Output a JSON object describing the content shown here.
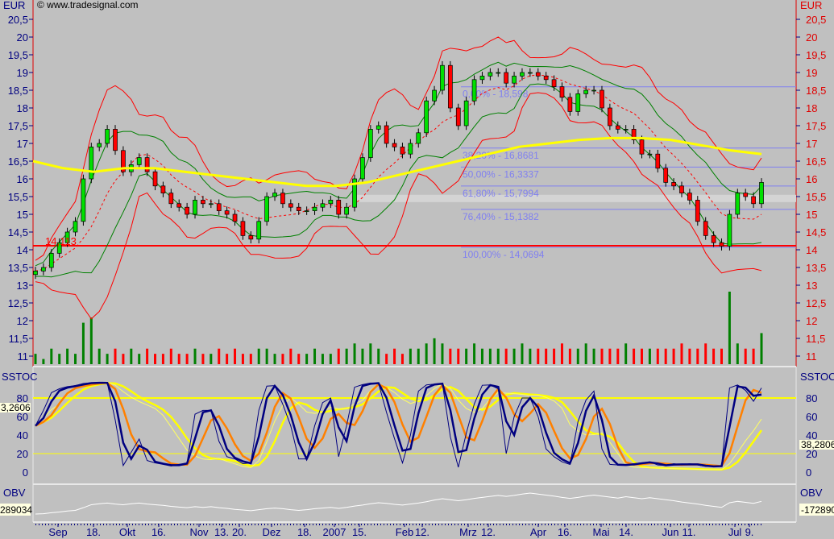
{
  "header": {
    "copyright": "© www.tradesignal.com",
    "currency": "EUR"
  },
  "panels": {
    "stoch": "SSTOC",
    "obv": "OBV"
  },
  "readouts": {
    "stoch_left": "3,2606",
    "stoch_right": "38,2806",
    "obv_left": "289034",
    "obv_right": "-172890"
  },
  "support_label": "14,113",
  "colors": {
    "up": "#00a000",
    "down": "#ff0000",
    "ma": "#ffff00",
    "fib": "#8080f0",
    "axis": "#000080",
    "stoch_fast": "#000080",
    "stoch_slow": "#ff8000"
  },
  "chart_data": [
    {
      "type": "candlestick",
      "ylim": [
        10.8,
        20.9
      ],
      "y_ticks": [
        "11",
        "11,5",
        "12",
        "12,5",
        "13",
        "13,5",
        "14",
        "14,5",
        "15",
        "15,5",
        "16",
        "16,5",
        "17",
        "17,5",
        "18",
        "18,5",
        "19",
        "19,5",
        "20",
        "20,5"
      ],
      "x_ticks": [
        "Sep",
        "18.",
        "Okt",
        "16.",
        "Nov",
        "13.",
        "20.",
        "Dez",
        "18.",
        "2007",
        "15.",
        "Feb",
        "12.",
        "Mrz",
        "12.",
        "Apr",
        "16.",
        "Mai",
        "14.",
        "Jun",
        "11.",
        "Jul",
        "9."
      ],
      "close": [
        13.4,
        13.5,
        13.9,
        14.2,
        14.5,
        14.8,
        16.0,
        16.9,
        17.0,
        17.4,
        16.8,
        16.2,
        16.4,
        16.6,
        16.2,
        15.8,
        15.6,
        15.3,
        15.2,
        15.0,
        15.4,
        15.3,
        15.3,
        15.1,
        15.0,
        14.8,
        14.4,
        14.3,
        14.8,
        15.5,
        15.6,
        15.3,
        15.2,
        15.1,
        15.1,
        15.2,
        15.3,
        15.4,
        15.0,
        15.2,
        16.0,
        16.6,
        17.4,
        17.5,
        17.0,
        16.9,
        16.7,
        17.0,
        17.3,
        18.2,
        18.5,
        19.2,
        18.0,
        17.5,
        18.2,
        18.8,
        18.9,
        19.0,
        19.0,
        18.7,
        18.9,
        19.0,
        19.0,
        18.9,
        18.8,
        18.6,
        18.3,
        17.9,
        18.4,
        18.5,
        18.5,
        18.0,
        17.5,
        17.4,
        17.4,
        17.1,
        16.7,
        16.7,
        16.3,
        15.9,
        15.8,
        15.6,
        15.4,
        14.8,
        14.4,
        14.2,
        14.1,
        15.0,
        15.6,
        15.5,
        15.3,
        15.9
      ],
      "volume": [
        2,
        1,
        3,
        2,
        3,
        2,
        8,
        9,
        3,
        2,
        3,
        2,
        3,
        2,
        3,
        2,
        2,
        3,
        2,
        2,
        3,
        2,
        2,
        3,
        2,
        3,
        2,
        2,
        3,
        3,
        2,
        2,
        3,
        2,
        2,
        3,
        2,
        2,
        3,
        3,
        4,
        3,
        4,
        3,
        2,
        3,
        2,
        3,
        3,
        4,
        5,
        4,
        3,
        3,
        3,
        4,
        3,
        3,
        3,
        3,
        3,
        4,
        3,
        3,
        3,
        3,
        4,
        3,
        3,
        4,
        3,
        3,
        3,
        3,
        4,
        3,
        3,
        3,
        3,
        3,
        3,
        4,
        3,
        3,
        4,
        3,
        3,
        14,
        4,
        3,
        3,
        6
      ],
      "moving_average": [
        16.5,
        16.3,
        16.2,
        16.3,
        16.3,
        16.2,
        16.1,
        16.0,
        15.9,
        15.8,
        15.8,
        15.9,
        16.1,
        16.3,
        16.5,
        16.7,
        16.9,
        17.0,
        17.1,
        17.15,
        17.15,
        17.1,
        16.95,
        16.8,
        16.7
      ],
      "fibonacci": [
        {
          "label": "0,00% - 18,598",
          "value": 18.598
        },
        {
          "label": "38,20% - 16,8681",
          "value": 16.8681
        },
        {
          "label": "50,00% - 16,3337",
          "value": 16.3337
        },
        {
          "label": "61,80% - 15,7994",
          "value": 15.7994
        },
        {
          "label": "76,40% - 15,1382",
          "value": 15.1382
        },
        {
          "label": "100,00% - 14,0694",
          "value": 14.0694
        }
      ],
      "support": 14.113
    },
    {
      "type": "line",
      "title": "SSTOC",
      "ylim": [
        -10,
        100
      ],
      "y_ticks": [
        "0",
        "20",
        "40",
        "60",
        "80"
      ],
      "levels": [
        20,
        80
      ]
    },
    {
      "type": "line",
      "title": "OBV"
    }
  ]
}
